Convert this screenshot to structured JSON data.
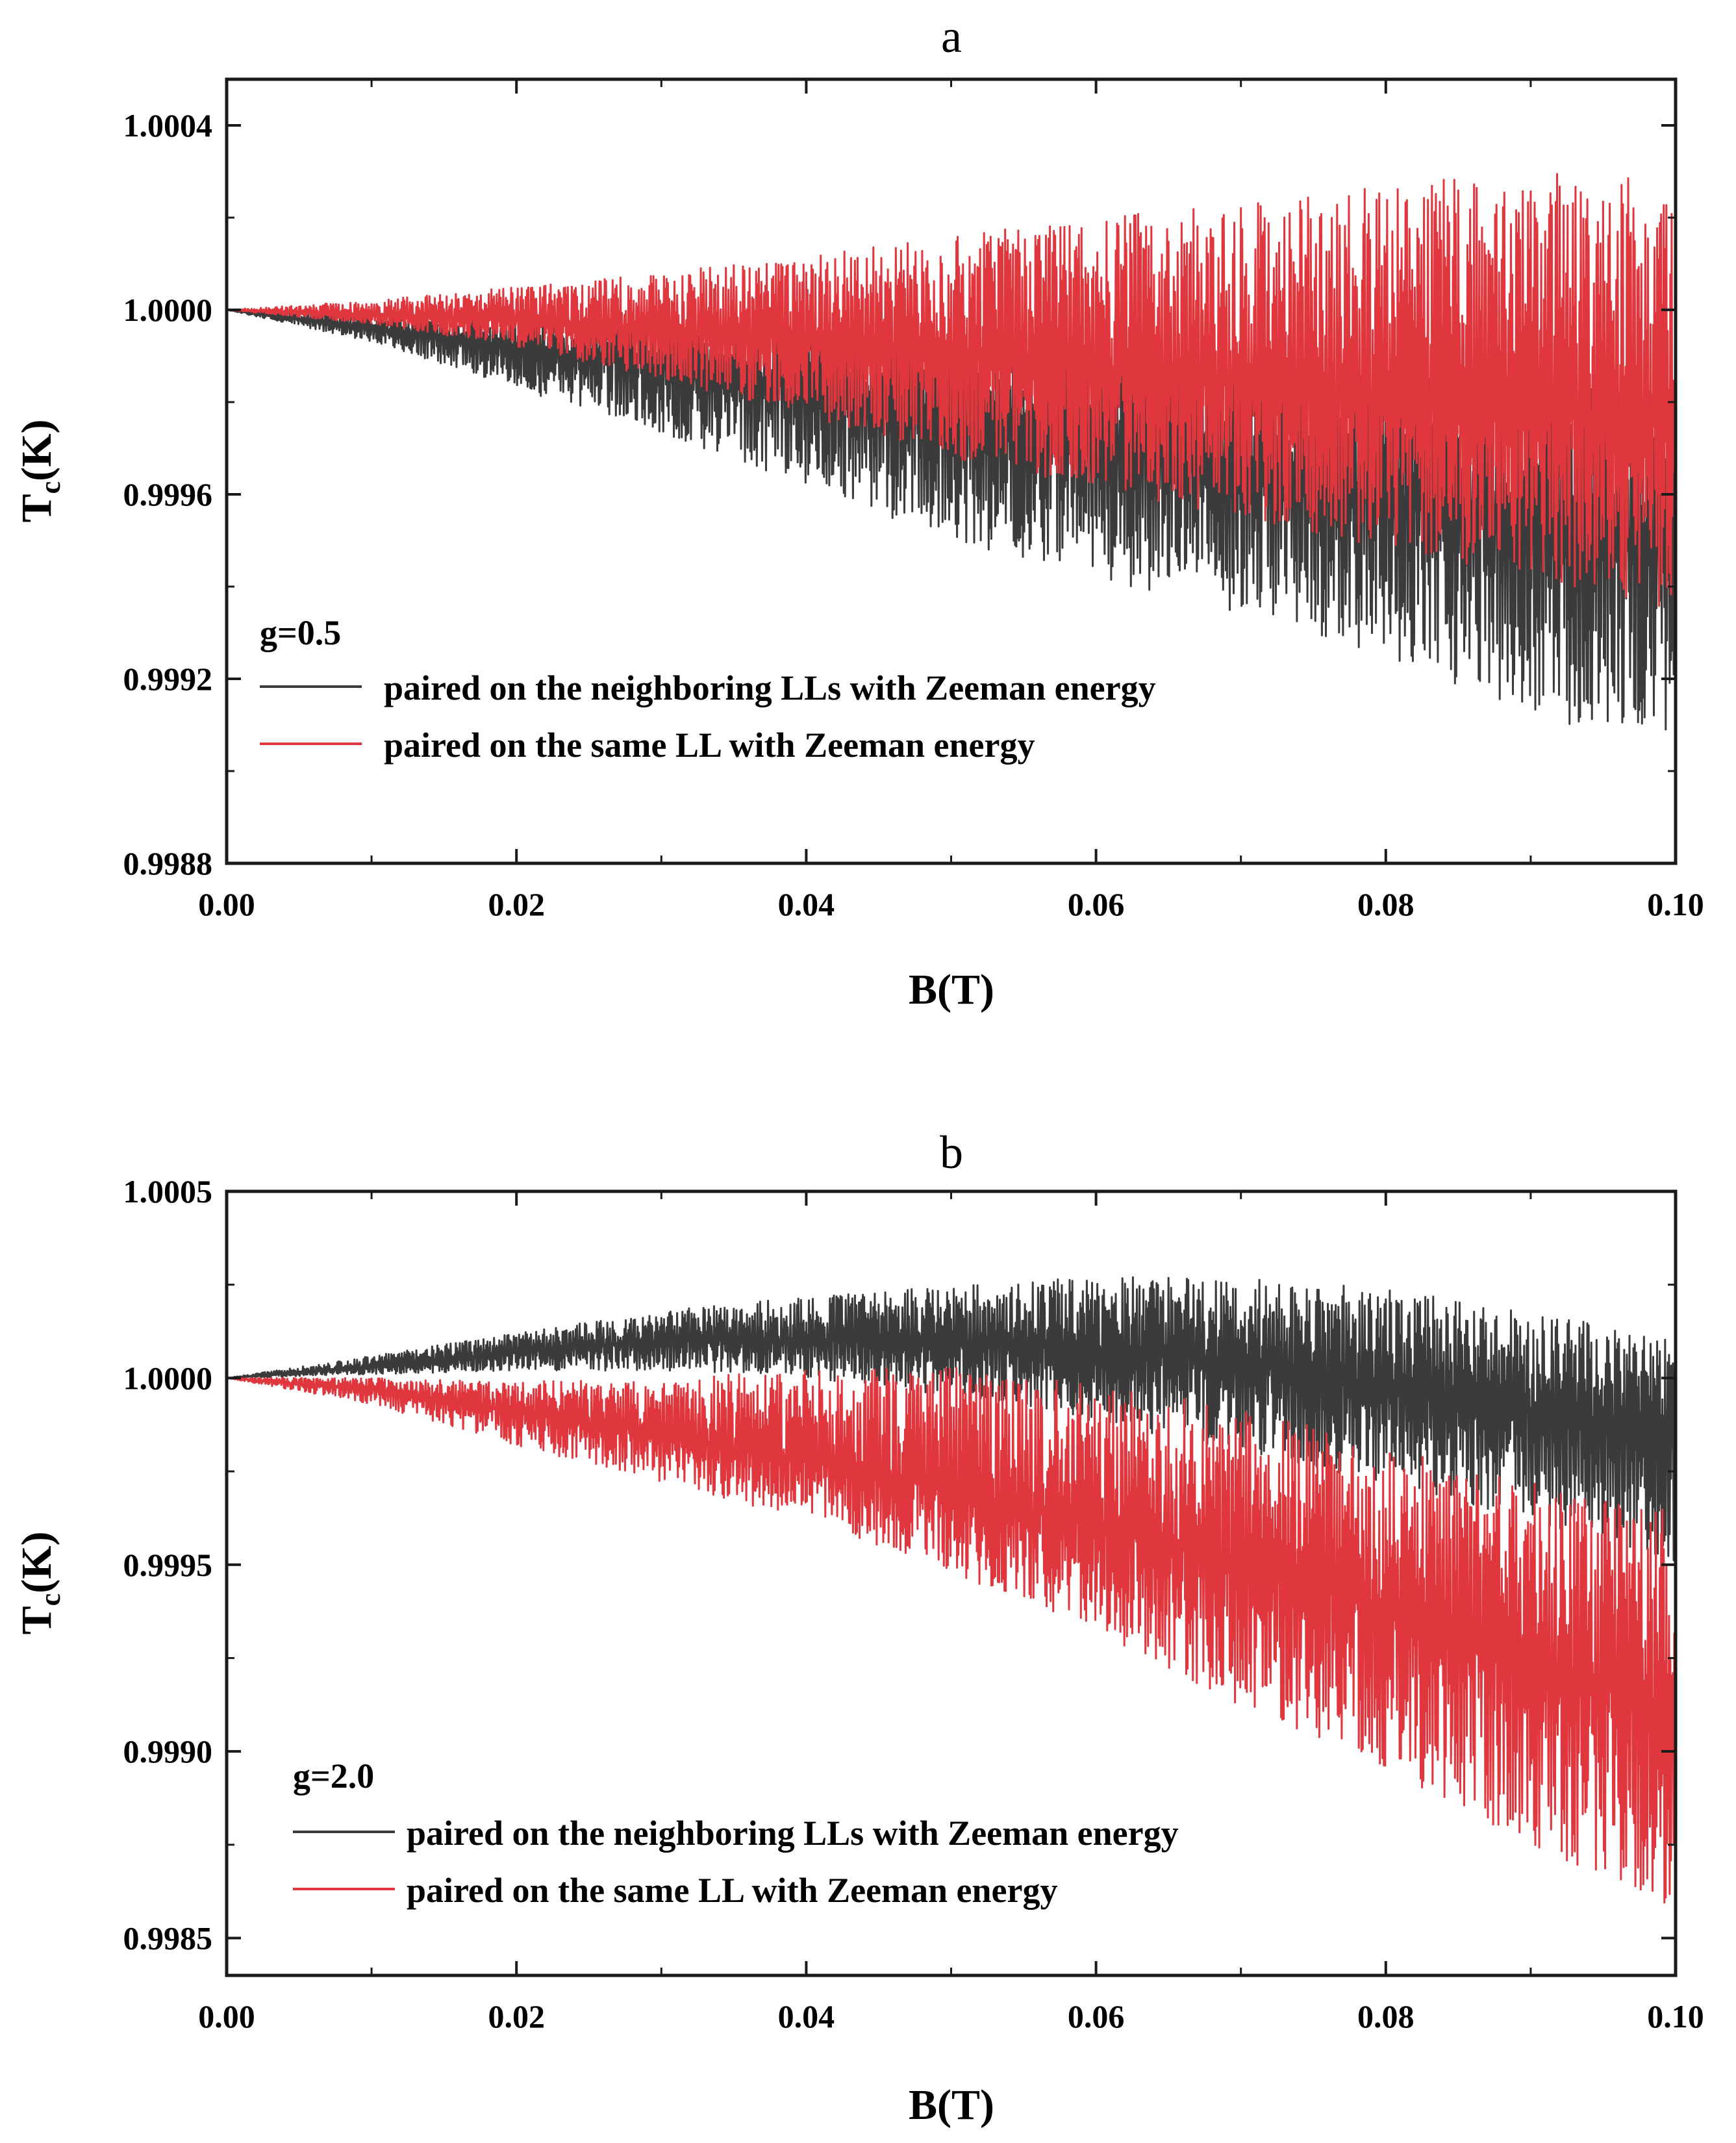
{
  "chart_data": [
    {
      "type": "line",
      "panel": "a",
      "title": "a",
      "xlabel": "B(T)",
      "ylabel_main": "T",
      "ylabel_sub": "c",
      "ylabel_tail": "(K)",
      "xlim": [
        0.0,
        0.1
      ],
      "ylim": [
        0.9988,
        1.0005
      ],
      "xticks": [
        0.0,
        0.02,
        0.04,
        0.06,
        0.08,
        0.1
      ],
      "xtick_labels": [
        "0.00",
        "0.02",
        "0.04",
        "0.06",
        "0.08",
        "0.10"
      ],
      "yticks": [
        0.9988,
        0.9992,
        0.9996,
        1.0,
        1.0004
      ],
      "ytick_labels": [
        "0.9988",
        "0.9992",
        "0.9996",
        "1.0000",
        "1.0004"
      ],
      "legend_title": "g=0.5",
      "legend_position": "lower-left",
      "series": [
        {
          "name": "paired on the neighboring LLs with Zeeman energy",
          "color": "#3b3b3b",
          "x": [
            0.0,
            0.01,
            0.02,
            0.03,
            0.04,
            0.05,
            0.06,
            0.07,
            0.08,
            0.09,
            0.1
          ],
          "center": [
            1.0,
            0.99996,
            0.99992,
            0.99988,
            0.99984,
            0.99978,
            0.99972,
            0.99966,
            0.9996,
            0.99955,
            0.9995
          ],
          "upper": [
            1.0,
            0.99999,
            0.99998,
            0.99997,
            0.99995,
            0.99993,
            0.99991,
            0.99989,
            0.99987,
            0.99985,
            0.99983
          ],
          "lower": [
            1.0,
            0.99993,
            0.99983,
            0.99973,
            0.99962,
            0.9995,
            0.99942,
            0.99934,
            0.99925,
            0.99912,
            0.99905
          ]
        },
        {
          "name": "paired on the same LL with Zeeman energy",
          "color": "#e0363d",
          "x": [
            0.0,
            0.01,
            0.02,
            0.03,
            0.04,
            0.05,
            0.06,
            0.07,
            0.08,
            0.09,
            0.1
          ],
          "center": [
            1.0,
            0.99999,
            0.99998,
            0.99996,
            0.99994,
            0.99991,
            0.99987,
            0.99984,
            0.99981,
            0.99978,
            0.99975
          ],
          "upper": [
            1.0,
            1.00002,
            1.00005,
            1.00008,
            1.00012,
            1.00016,
            1.0002,
            1.00023,
            1.00027,
            1.0003,
            1.0003
          ],
          "lower": [
            1.0,
            0.99997,
            0.99992,
            0.99985,
            0.99977,
            0.99968,
            0.99961,
            0.99955,
            0.99948,
            0.99942,
            0.99935
          ]
        }
      ]
    },
    {
      "type": "line",
      "panel": "b",
      "title": "b",
      "xlabel": "B(T)",
      "ylabel_main": "T",
      "ylabel_sub": "c",
      "ylabel_tail": "(K)",
      "xlim": [
        0.0,
        0.1
      ],
      "ylim": [
        0.9984,
        1.0005
      ],
      "xticks": [
        0.0,
        0.02,
        0.04,
        0.06,
        0.08,
        0.1
      ],
      "xtick_labels": [
        "0.00",
        "0.02",
        "0.04",
        "0.06",
        "0.08",
        "0.10"
      ],
      "yticks": [
        0.9985,
        0.999,
        0.9995,
        1.0,
        1.0005
      ],
      "ytick_labels": [
        "0.9985",
        "0.9990",
        "0.9995",
        "1.0000",
        "1.0005"
      ],
      "legend_title": "g=2.0",
      "legend_position": "lower-left",
      "series": [
        {
          "name": "paired on the neighboring LLs with Zeeman energy",
          "color": "#3b3b3b",
          "x": [
            0.0,
            0.01,
            0.02,
            0.03,
            0.04,
            0.05,
            0.06,
            0.07,
            0.08,
            0.09,
            0.1
          ],
          "center": [
            1.0,
            1.00003,
            1.00007,
            1.0001,
            1.0001,
            1.0001,
            1.00008,
            1.00004,
            0.99998,
            0.99992,
            0.99985
          ],
          "upper": [
            1.0,
            1.00006,
            1.00012,
            1.00018,
            1.00022,
            1.00025,
            1.00027,
            1.00027,
            1.00024,
            1.00018,
            1.0001
          ],
          "lower": [
            1.0,
            1.00001,
            1.00002,
            1.00002,
            1.0,
            0.99995,
            0.99988,
            0.9998,
            0.99972,
            0.99962,
            0.9995
          ]
        },
        {
          "name": "paired on the same LL with Zeeman energy",
          "color": "#e0363d",
          "x": [
            0.0,
            0.01,
            0.02,
            0.03,
            0.04,
            0.05,
            0.06,
            0.07,
            0.08,
            0.09,
            0.1
          ],
          "center": [
            1.0,
            0.99997,
            0.99991,
            0.99985,
            0.99978,
            0.9997,
            0.9996,
            0.9995,
            0.99938,
            0.99925,
            0.9991
          ],
          "upper": [
            1.0,
            1.0,
            0.99999,
            1.0,
            1.00002,
            1.00003,
            0.99998,
            0.99992,
            0.99982,
            0.99972,
            0.99965
          ],
          "lower": [
            1.0,
            0.99993,
            0.99982,
            0.99972,
            0.99962,
            0.99948,
            0.99932,
            0.99912,
            0.99895,
            0.99875,
            0.99855
          ]
        }
      ]
    }
  ]
}
